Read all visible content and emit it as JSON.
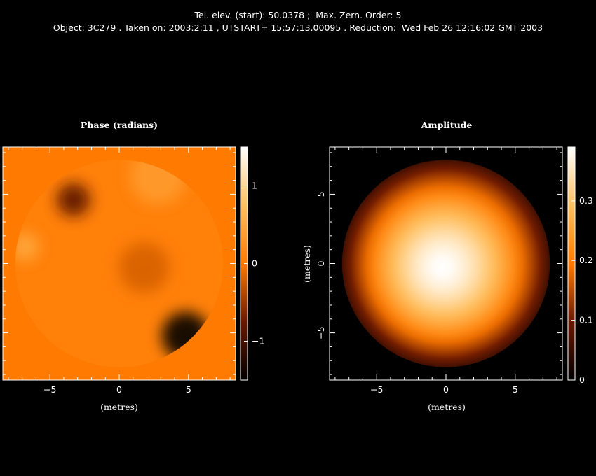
{
  "header": {
    "line1": "Tel. elev. (start): 50.0378 ;  Max. Zern. Order: 5",
    "line2": "Object: 3C279 . Taken on: 2003:2:11 , UTSTART= 15:57:13.00095 . Reduction:  Wed Feb 26 12:16:02 GMT 2003"
  },
  "chart_data": [
    {
      "type": "heatmap",
      "title": "Phase (radians)",
      "xlabel": "(metres)",
      "ylabel": "",
      "xlim": [
        -8.4,
        8.4
      ],
      "ylim": [
        -8.4,
        8.4
      ],
      "xticks": [
        -5,
        0,
        5
      ],
      "yticks": [],
      "aperture_radius": 7.5,
      "background_value": 0,
      "colorbar": {
        "range": [
          -1.5,
          1.5
        ],
        "ticks": [
          1,
          0,
          -1
        ],
        "tick_labels": [
          "1",
          "0",
          "−1"
        ]
      },
      "features": [
        {
          "x": -3.3,
          "y": 4.6,
          "value": -0.85,
          "note": "dark minimum upper-left"
        },
        {
          "x": 4.8,
          "y": -5.2,
          "value": -1.5,
          "note": "dark edge lower-right"
        },
        {
          "x": 2.8,
          "y": 6.3,
          "value": 0.35,
          "note": "light maximum upper-right"
        },
        {
          "x": -6.8,
          "y": 1.2,
          "value": 0.5,
          "note": "light left limb"
        },
        {
          "x": 1.8,
          "y": -0.3,
          "value": -0.2,
          "note": "orange trough right of centre"
        }
      ]
    },
    {
      "type": "heatmap",
      "title": "Amplitude",
      "xlabel": "(metres)",
      "ylabel": "(metres)",
      "xlim": [
        -8.4,
        8.4
      ],
      "ylim": [
        -8.4,
        8.4
      ],
      "xticks": [
        -5,
        0,
        5
      ],
      "yticks": [
        5,
        0,
        -5
      ],
      "aperture_radius": 7.5,
      "peak": {
        "x": -0.3,
        "y": -0.3,
        "value": 0.39
      },
      "edge_value": 0.06,
      "colorbar": {
        "range": [
          0,
          0.39
        ],
        "ticks": [
          0.3,
          0.2,
          0.1,
          0
        ],
        "tick_labels": [
          "0.3",
          "0.2",
          "0.1",
          "0"
        ]
      }
    }
  ]
}
